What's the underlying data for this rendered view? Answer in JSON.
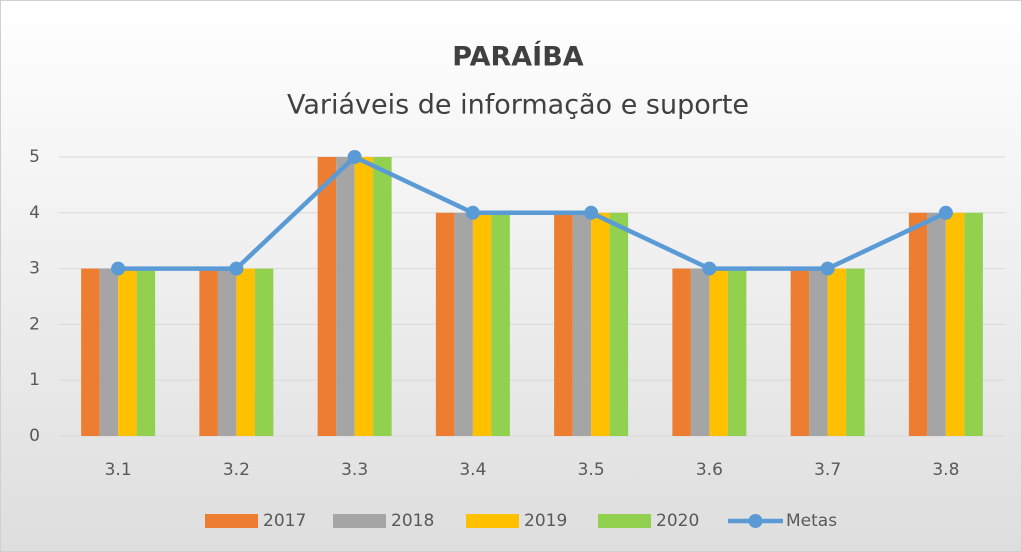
{
  "chart_data": {
    "type": "bar",
    "title": "PARAÍBA",
    "subtitle": "Variáveis de informação e suporte",
    "categories": [
      "3.1",
      "3.2",
      "3.3",
      "3.4",
      "3.5",
      "3.6",
      "3.7",
      "3.8"
    ],
    "series": [
      {
        "name": "2017",
        "color": "#ed7d31",
        "values": [
          3,
          3,
          5,
          4,
          4,
          3,
          3,
          4
        ]
      },
      {
        "name": "2018",
        "color": "#a5a5a5",
        "values": [
          3,
          3,
          5,
          4,
          4,
          3,
          3,
          4
        ]
      },
      {
        "name": "2019",
        "color": "#ffc000",
        "values": [
          3,
          3,
          5,
          4,
          4,
          3,
          3,
          4
        ]
      },
      {
        "name": "2020",
        "color": "#92d050",
        "values": [
          3,
          3,
          5,
          4,
          4,
          3,
          3,
          4
        ]
      },
      {
        "name": "Metas",
        "type": "line",
        "color": "#5b9bd5",
        "values": [
          3,
          3,
          5,
          4,
          4,
          3,
          3,
          4
        ]
      }
    ],
    "ylim": [
      0,
      5
    ],
    "yticks": [
      0,
      1,
      2,
      3,
      4,
      5
    ],
    "grid": true,
    "legend": "bottom"
  }
}
